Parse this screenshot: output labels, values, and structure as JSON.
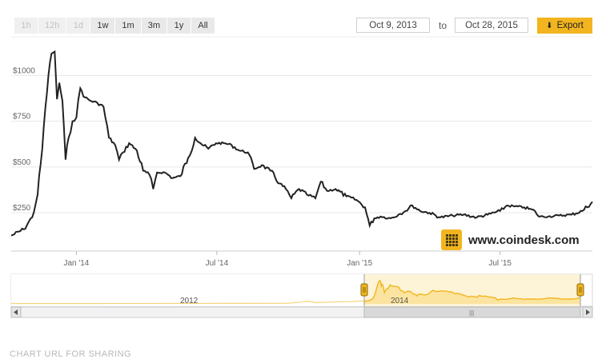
{
  "zoom": {
    "buttons": [
      {
        "label": "1h",
        "enabled": false
      },
      {
        "label": "12h",
        "enabled": false
      },
      {
        "label": "1d",
        "enabled": false
      },
      {
        "label": "1w",
        "enabled": true
      },
      {
        "label": "1m",
        "enabled": true
      },
      {
        "label": "3m",
        "enabled": true
      },
      {
        "label": "1y",
        "enabled": true
      },
      {
        "label": "All",
        "enabled": true
      }
    ]
  },
  "range": {
    "from": "Oct 9, 2013",
    "to_label": "to",
    "to": "Oct 28, 2015"
  },
  "export_label": "Export",
  "brand": "www.coindesk.com",
  "share_label": "CHART URL FOR SHARING",
  "colors": {
    "line": "#222222",
    "accent": "#f2b51f",
    "grid": "#e6e6e6",
    "nav_fill": "#fdf0cc"
  },
  "chart_data": {
    "type": "line",
    "title": "",
    "xlabel": "",
    "ylabel": "",
    "y_ticks": [
      "$250",
      "$500",
      "$750",
      "$1000"
    ],
    "y_tick_values": [
      250,
      500,
      750,
      1000
    ],
    "x_ticks": [
      "Jan '14",
      "Jul '14",
      "Jan '15",
      "Jul '15"
    ],
    "x_tick_dates": [
      "2014-01-01",
      "2014-07-01",
      "2015-01-01",
      "2015-07-01"
    ],
    "x_range": [
      "2013-10-09",
      "2015-10-28"
    ],
    "ylim": [
      50,
      1150
    ],
    "grid": true,
    "series": [
      {
        "values": [
          [
            "2013-10-09",
            125
          ],
          [
            "2013-10-25",
            160
          ],
          [
            "2013-11-05",
            225
          ],
          [
            "2013-11-12",
            350
          ],
          [
            "2013-11-18",
            600
          ],
          [
            "2013-11-22",
            820
          ],
          [
            "2013-11-26",
            1000
          ],
          [
            "2013-11-30",
            1120
          ],
          [
            "2013-12-04",
            1130
          ],
          [
            "2013-12-07",
            870
          ],
          [
            "2013-12-10",
            960
          ],
          [
            "2013-12-14",
            860
          ],
          [
            "2013-12-18",
            540
          ],
          [
            "2013-12-22",
            660
          ],
          [
            "2013-12-27",
            750
          ],
          [
            "2014-01-01",
            770
          ],
          [
            "2014-01-06",
            930
          ],
          [
            "2014-01-12",
            880
          ],
          [
            "2014-01-20",
            860
          ],
          [
            "2014-01-28",
            850
          ],
          [
            "2014-02-05",
            830
          ],
          [
            "2014-02-12",
            660
          ],
          [
            "2014-02-20",
            620
          ],
          [
            "2014-02-25",
            540
          ],
          [
            "2014-03-02",
            580
          ],
          [
            "2014-03-10",
            630
          ],
          [
            "2014-03-20",
            590
          ],
          [
            "2014-03-28",
            480
          ],
          [
            "2014-04-05",
            460
          ],
          [
            "2014-04-10",
            380
          ],
          [
            "2014-04-15",
            470
          ],
          [
            "2014-04-25",
            470
          ],
          [
            "2014-05-05",
            440
          ],
          [
            "2014-05-15",
            450
          ],
          [
            "2014-05-25",
            550
          ],
          [
            "2014-06-03",
            660
          ],
          [
            "2014-06-10",
            630
          ],
          [
            "2014-06-20",
            600
          ],
          [
            "2014-06-30",
            630
          ],
          [
            "2014-07-10",
            630
          ],
          [
            "2014-07-20",
            620
          ],
          [
            "2014-07-30",
            590
          ],
          [
            "2014-08-10",
            580
          ],
          [
            "2014-08-18",
            490
          ],
          [
            "2014-08-28",
            510
          ],
          [
            "2014-09-08",
            480
          ],
          [
            "2014-09-20",
            410
          ],
          [
            "2014-09-28",
            380
          ],
          [
            "2014-10-05",
            330
          ],
          [
            "2014-10-15",
            380
          ],
          [
            "2014-10-25",
            350
          ],
          [
            "2014-11-05",
            330
          ],
          [
            "2014-11-12",
            420
          ],
          [
            "2014-11-20",
            370
          ],
          [
            "2014-12-01",
            380
          ],
          [
            "2014-12-15",
            340
          ],
          [
            "2014-12-28",
            320
          ],
          [
            "2015-01-08",
            280
          ],
          [
            "2015-01-14",
            180
          ],
          [
            "2015-01-20",
            220
          ],
          [
            "2015-01-28",
            230
          ],
          [
            "2015-02-10",
            220
          ],
          [
            "2015-02-20",
            240
          ],
          [
            "2015-03-01",
            260
          ],
          [
            "2015-03-10",
            290
          ],
          [
            "2015-03-20",
            260
          ],
          [
            "2015-04-01",
            250
          ],
          [
            "2015-04-15",
            225
          ],
          [
            "2015-05-01",
            235
          ],
          [
            "2015-05-15",
            240
          ],
          [
            "2015-06-01",
            225
          ],
          [
            "2015-06-15",
            240
          ],
          [
            "2015-07-01",
            260
          ],
          [
            "2015-07-10",
            290
          ],
          [
            "2015-07-20",
            285
          ],
          [
            "2015-08-01",
            280
          ],
          [
            "2015-08-15",
            260
          ],
          [
            "2015-08-20",
            230
          ],
          [
            "2015-09-01",
            230
          ],
          [
            "2015-09-15",
            235
          ],
          [
            "2015-10-01",
            240
          ],
          [
            "2015-10-15",
            260
          ],
          [
            "2015-10-28",
            310
          ]
        ]
      }
    ]
  },
  "navigator": {
    "labels": [
      "2012",
      "2014"
    ],
    "selected_range": [
      "2013-10-09",
      "2015-10-28"
    ]
  }
}
